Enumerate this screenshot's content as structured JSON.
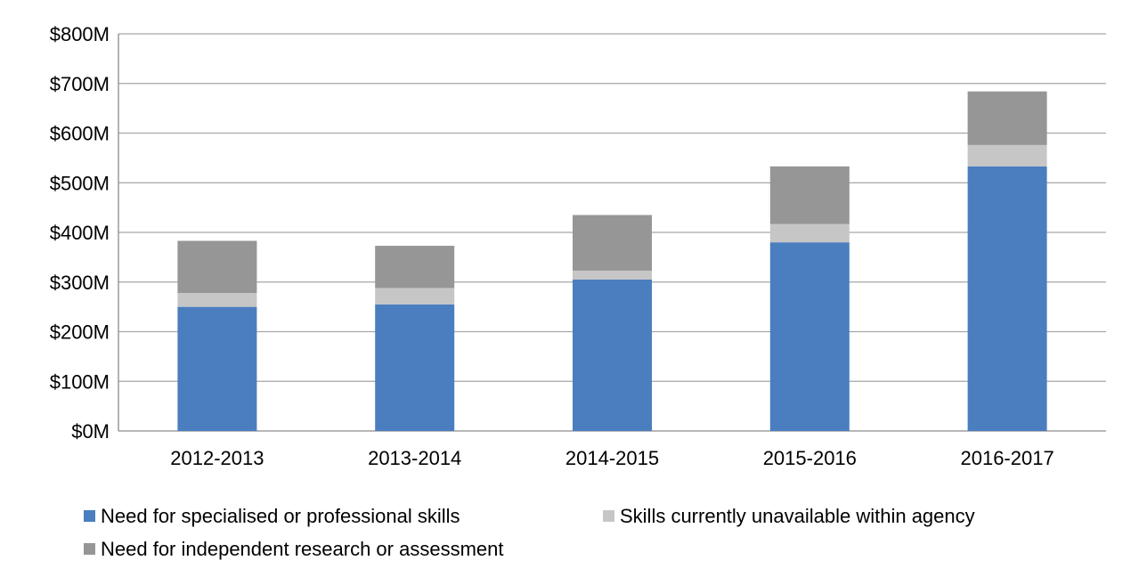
{
  "chart_data": {
    "type": "bar",
    "stacked": true,
    "categories": [
      "2012-2013",
      "2013-2014",
      "2014-2015",
      "2015-2016",
      "2016-2017"
    ],
    "series": [
      {
        "name": "Need for specialised or professional skills",
        "color": "#4a7ebf",
        "values": [
          250,
          255,
          305,
          380,
          533
        ]
      },
      {
        "name": "Skills currently unavailable within agency",
        "color": "#c6c6c6",
        "values": [
          28,
          33,
          18,
          37,
          43
        ]
      },
      {
        "name": "Need for independent research or assessment",
        "color": "#969696",
        "values": [
          105,
          85,
          112,
          116,
          108
        ]
      }
    ],
    "y_ticks": [
      "$0M",
      "$100M",
      "$200M",
      "$300M",
      "$400M",
      "$500M",
      "$600M",
      "$700M",
      "$800M"
    ],
    "ylim": [
      0,
      800
    ],
    "grid": true,
    "legend_position": "bottom-left"
  }
}
